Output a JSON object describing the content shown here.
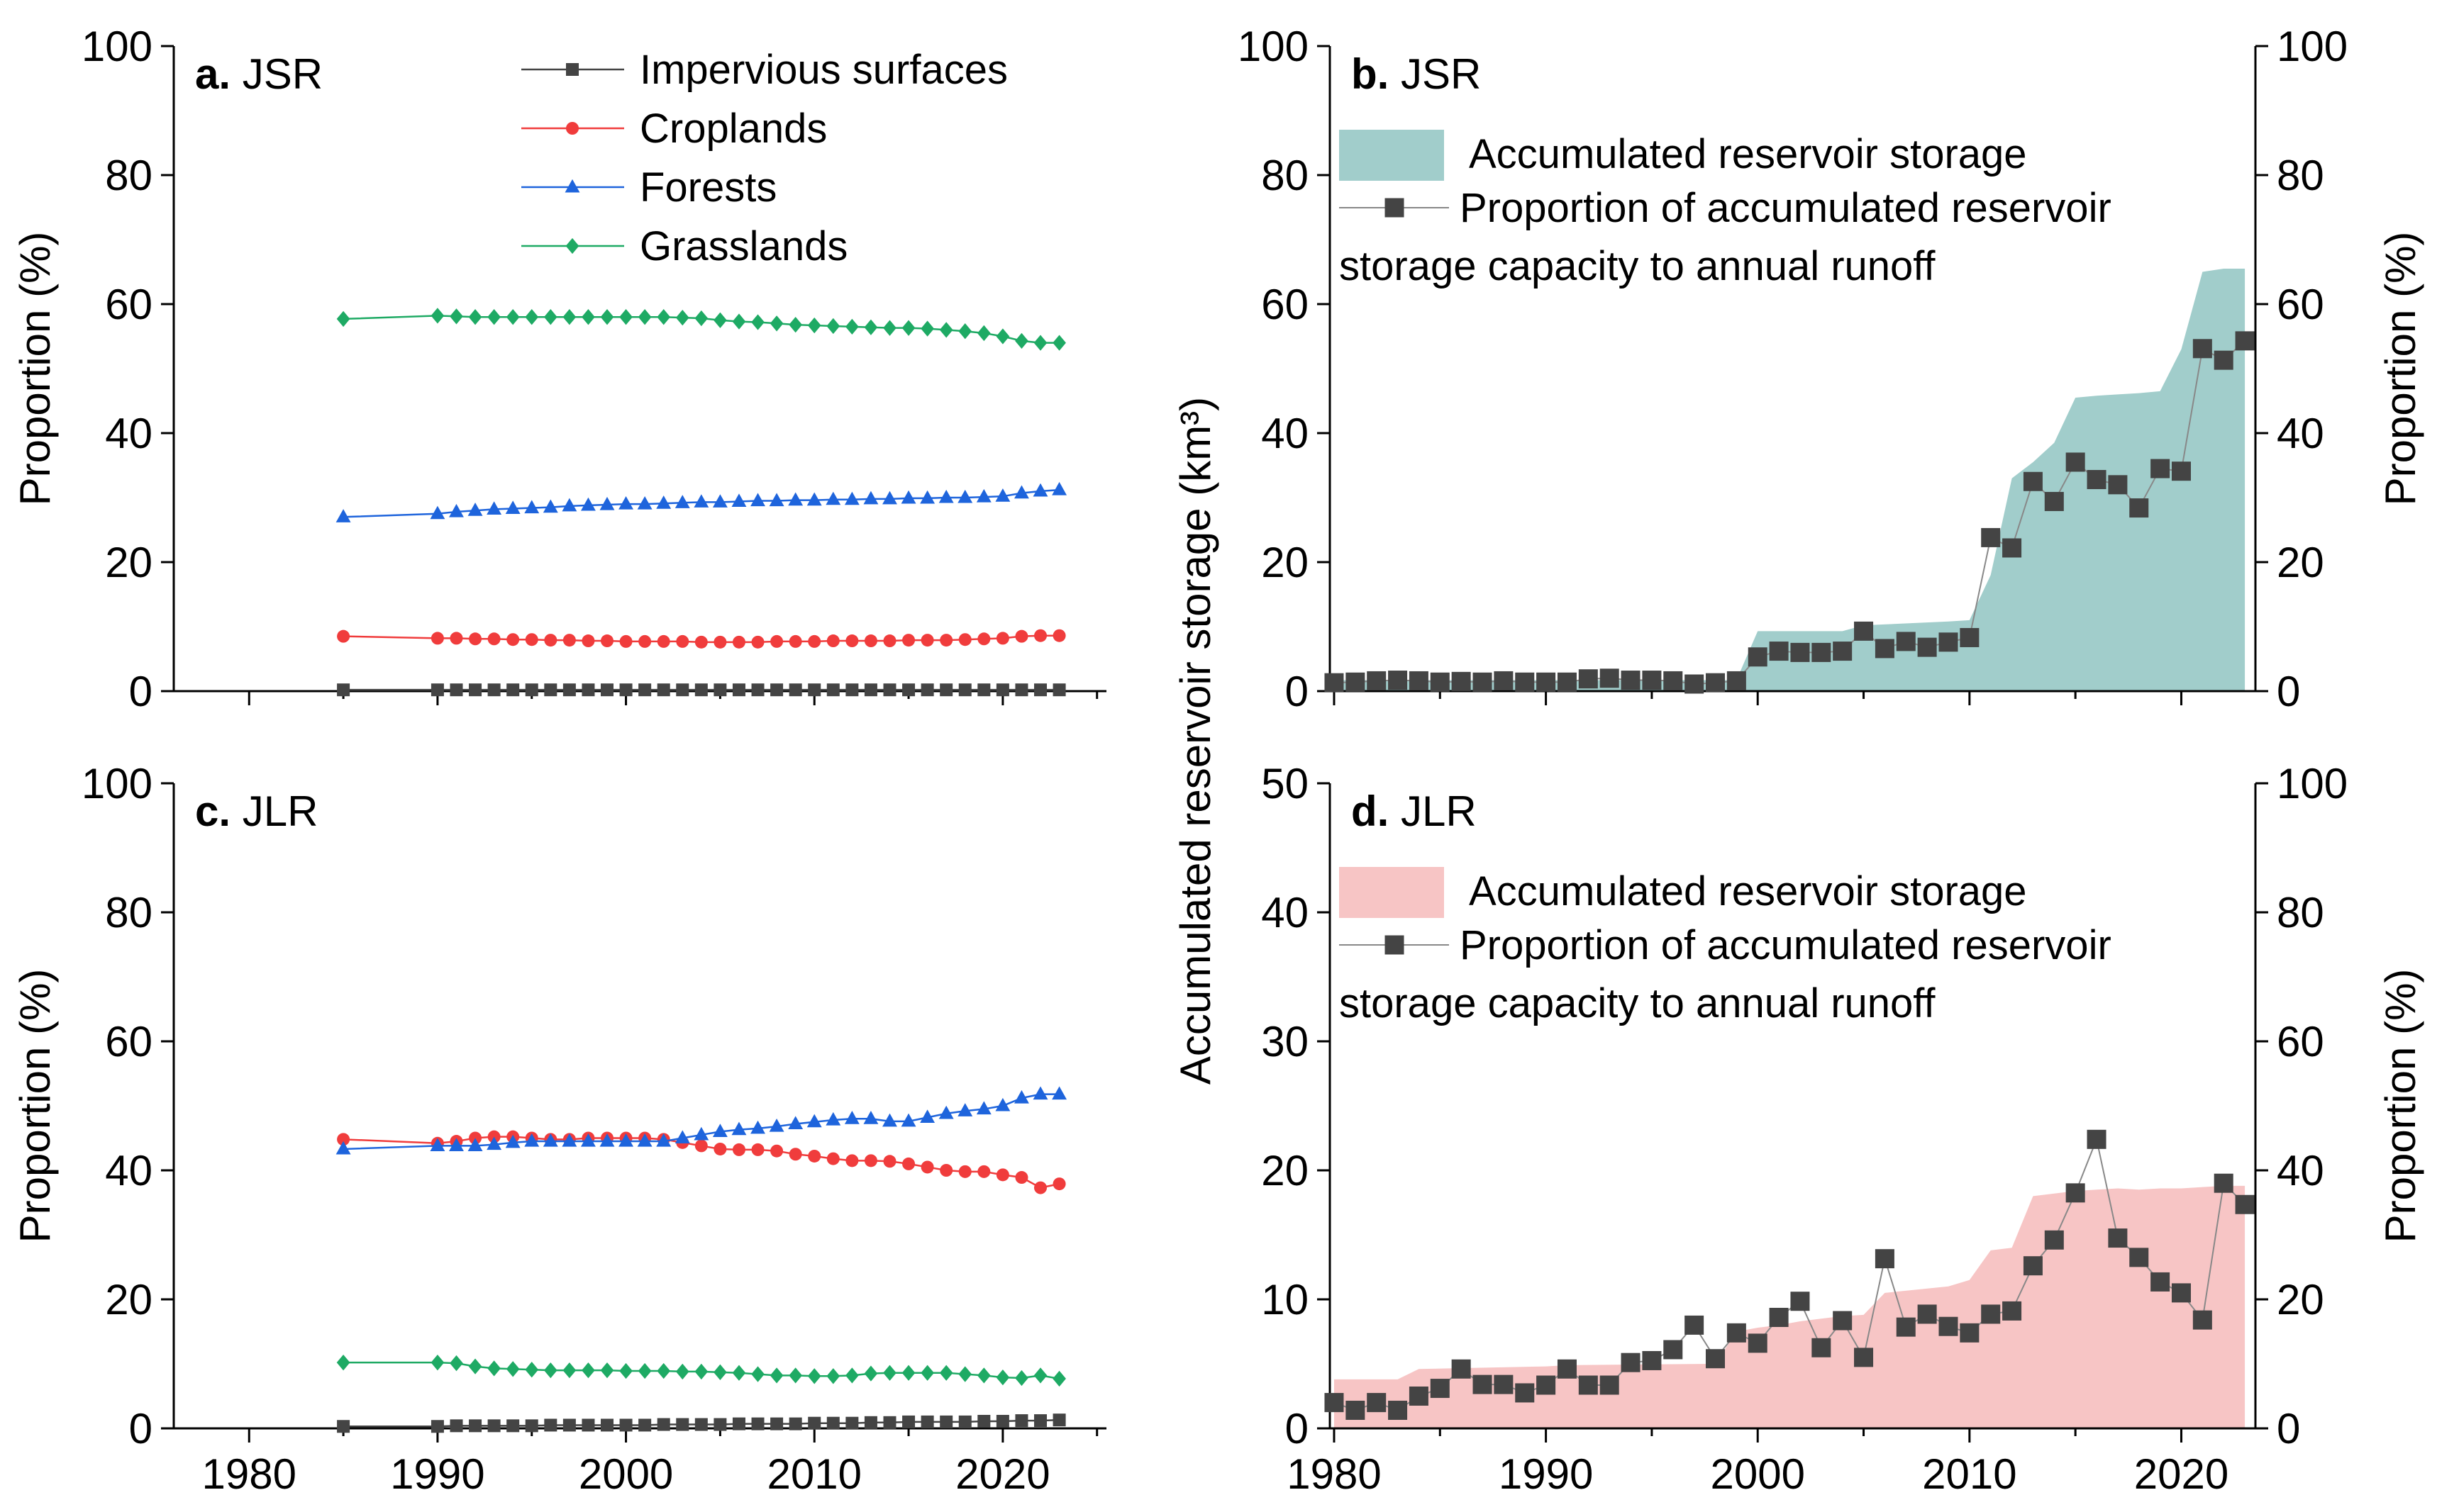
{
  "figure": {
    "shared_ylabel": "Accumulated reservoir storage (km³)"
  },
  "chart_data": [
    {
      "id": "a",
      "type": "line",
      "panel_label": "a.",
      "title": "JSR",
      "xlabel": "",
      "ylabel": "Proportion (%)",
      "xlim": [
        1976,
        2025.5
      ],
      "ylim": [
        0,
        100
      ],
      "xticks": [
        1980,
        1990,
        2000,
        2010,
        2020
      ],
      "xtick_labels_visible": false,
      "yticks": [
        0,
        20,
        40,
        60,
        80,
        100
      ],
      "legend_position": "top-right",
      "x": [
        1985,
        1990,
        1991,
        1992,
        1993,
        1994,
        1995,
        1996,
        1997,
        1998,
        1999,
        2000,
        2001,
        2002,
        2003,
        2004,
        2005,
        2006,
        2007,
        2008,
        2009,
        2010,
        2011,
        2012,
        2013,
        2014,
        2015,
        2016,
        2017,
        2018,
        2019,
        2020,
        2021,
        2022,
        2023
      ],
      "series": [
        {
          "name": "Impervious surfaces",
          "color": "#444444",
          "marker": "square",
          "values": [
            0.2,
            0.2,
            0.2,
            0.2,
            0.2,
            0.2,
            0.2,
            0.2,
            0.2,
            0.2,
            0.2,
            0.2,
            0.2,
            0.2,
            0.2,
            0.2,
            0.2,
            0.2,
            0.2,
            0.2,
            0.2,
            0.2,
            0.2,
            0.2,
            0.2,
            0.2,
            0.2,
            0.2,
            0.2,
            0.2,
            0.2,
            0.2,
            0.2,
            0.2,
            0.2
          ]
        },
        {
          "name": "Croplands",
          "color": "#f03c3c",
          "marker": "circle",
          "values": [
            8.5,
            8.2,
            8.2,
            8.1,
            8.1,
            8.0,
            8.0,
            7.9,
            7.9,
            7.8,
            7.8,
            7.7,
            7.7,
            7.7,
            7.7,
            7.6,
            7.6,
            7.6,
            7.6,
            7.7,
            7.7,
            7.7,
            7.8,
            7.8,
            7.8,
            7.8,
            7.9,
            7.9,
            7.9,
            8.0,
            8.1,
            8.2,
            8.5,
            8.6,
            8.6
          ]
        },
        {
          "name": "Forests",
          "color": "#1e64dc",
          "marker": "triangle",
          "values": [
            27.0,
            27.5,
            27.8,
            28.0,
            28.2,
            28.3,
            28.4,
            28.5,
            28.7,
            28.8,
            28.9,
            29.0,
            29.0,
            29.1,
            29.2,
            29.3,
            29.3,
            29.4,
            29.5,
            29.5,
            29.6,
            29.6,
            29.7,
            29.7,
            29.8,
            29.8,
            29.9,
            29.9,
            30.0,
            30.0,
            30.1,
            30.2,
            30.7,
            31.0,
            31.2
          ]
        },
        {
          "name": "Grasslands",
          "color": "#1eaa64",
          "marker": "diamond",
          "values": [
            57.7,
            58.2,
            58.1,
            58.0,
            58.0,
            58.0,
            58.0,
            58.0,
            58.0,
            58.0,
            58.0,
            58.0,
            58.0,
            58.0,
            57.9,
            57.8,
            57.5,
            57.3,
            57.2,
            57.0,
            56.8,
            56.7,
            56.6,
            56.5,
            56.4,
            56.3,
            56.3,
            56.2,
            56.0,
            55.8,
            55.5,
            55.0,
            54.3,
            54.0,
            54.0
          ]
        }
      ]
    },
    {
      "id": "b",
      "type": "area",
      "panel_label": "b.",
      "title": "JSR",
      "xlabel": "",
      "ylabel_left": "",
      "ylabel_right": "Proportion (%)",
      "xlim": [
        1979.8,
        2023.5
      ],
      "ylim_left": [
        0,
        100
      ],
      "ylim_right": [
        0,
        100
      ],
      "xticks": [
        1980,
        1990,
        2000,
        2010,
        2020
      ],
      "xtick_labels_visible": false,
      "yticks_left": [
        0,
        20,
        40,
        60,
        80,
        100
      ],
      "yticks_right": [
        0,
        20,
        40,
        60,
        80,
        100
      ],
      "legend_position": "top-left",
      "area": {
        "name": "Accumulated reservoir storage",
        "color": "#a1cdcb",
        "x": [
          1980,
          1999,
          2000,
          2004,
          2005,
          2009,
          2010,
          2011,
          2012,
          2013,
          2014,
          2015,
          2016,
          2017,
          2018,
          2019,
          2020,
          2021,
          2022,
          2023
        ],
        "values": [
          1.7,
          1.7,
          9.3,
          9.3,
          10.2,
          10.8,
          11.0,
          18.0,
          33.0,
          35.5,
          38.5,
          45.5,
          45.8,
          46.0,
          46.2,
          46.5,
          53.0,
          65.0,
          65.5,
          65.5
        ]
      },
      "series": [
        {
          "name": "Proportion of accumulated reservoir storage capacity to annual runoff",
          "legend_line2": "storage capacity to annual runoff",
          "color": "#444444",
          "marker": "square",
          "axis": "right",
          "x": [
            1980,
            1981,
            1982,
            1983,
            1984,
            1985,
            1986,
            1987,
            1988,
            1989,
            1990,
            1991,
            1992,
            1993,
            1994,
            1995,
            1996,
            1997,
            1998,
            1999,
            2000,
            2001,
            2002,
            2003,
            2004,
            2005,
            2006,
            2007,
            2008,
            2009,
            2010,
            2011,
            2012,
            2013,
            2014,
            2015,
            2016,
            2017,
            2018,
            2019,
            2020,
            2021,
            2022,
            2023
          ],
          "values": [
            1.3,
            1.4,
            1.6,
            1.7,
            1.6,
            1.4,
            1.5,
            1.4,
            1.6,
            1.4,
            1.4,
            1.4,
            1.9,
            2.0,
            1.7,
            1.7,
            1.6,
            1.1,
            1.3,
            1.6,
            5.3,
            6.2,
            6.0,
            6.0,
            6.2,
            9.3,
            6.6,
            7.7,
            6.8,
            7.6,
            8.3,
            23.8,
            22.2,
            32.5,
            29.4,
            35.5,
            32.8,
            32.0,
            28.4,
            34.5,
            34.1,
            53.1,
            51.3,
            54.3
          ]
        }
      ]
    },
    {
      "id": "c",
      "type": "line",
      "panel_label": "c.",
      "title": "JLR",
      "xlabel": "",
      "ylabel": "Proportion (%)",
      "xlim": [
        1976,
        2025.5
      ],
      "ylim": [
        0,
        100
      ],
      "xticks": [
        1980,
        1990,
        2000,
        2010,
        2020
      ],
      "xtick_labels": [
        "1980",
        "1990",
        "2000",
        "2010",
        "2020"
      ],
      "yticks": [
        0,
        20,
        40,
        60,
        80,
        100
      ],
      "x": [
        1985,
        1990,
        1991,
        1992,
        1993,
        1994,
        1995,
        1996,
        1997,
        1998,
        1999,
        2000,
        2001,
        2002,
        2003,
        2004,
        2005,
        2006,
        2007,
        2008,
        2009,
        2010,
        2011,
        2012,
        2013,
        2014,
        2015,
        2016,
        2017,
        2018,
        2019,
        2020,
        2021,
        2022,
        2023
      ],
      "series": [
        {
          "name": "Impervious surfaces",
          "color": "#444444",
          "marker": "square",
          "values": [
            0.3,
            0.3,
            0.4,
            0.4,
            0.4,
            0.4,
            0.4,
            0.5,
            0.5,
            0.5,
            0.5,
            0.5,
            0.5,
            0.6,
            0.6,
            0.6,
            0.6,
            0.7,
            0.7,
            0.7,
            0.7,
            0.8,
            0.8,
            0.8,
            0.9,
            0.9,
            1.0,
            1.0,
            1.0,
            1.0,
            1.1,
            1.1,
            1.2,
            1.2,
            1.3
          ]
        },
        {
          "name": "Croplands",
          "color": "#f03c3c",
          "marker": "circle",
          "values": [
            44.8,
            44.2,
            44.5,
            45.0,
            45.2,
            45.2,
            45.0,
            44.8,
            44.8,
            45.0,
            45.0,
            45.0,
            45.0,
            44.8,
            44.3,
            43.8,
            43.3,
            43.2,
            43.2,
            43.0,
            42.5,
            42.2,
            41.8,
            41.5,
            41.5,
            41.4,
            41.0,
            40.5,
            40.0,
            39.8,
            39.8,
            39.3,
            38.9,
            37.3,
            37.9
          ]
        },
        {
          "name": "Forests",
          "color": "#1e64dc",
          "marker": "triangle",
          "values": [
            43.3,
            43.8,
            43.8,
            43.8,
            44.0,
            44.3,
            44.5,
            44.5,
            44.5,
            44.5,
            44.5,
            44.5,
            44.5,
            44.5,
            45.0,
            45.5,
            46.0,
            46.3,
            46.5,
            46.8,
            47.2,
            47.5,
            47.8,
            48.0,
            48.0,
            47.6,
            47.6,
            48.2,
            48.8,
            49.2,
            49.5,
            50.0,
            51.2,
            51.8,
            51.8
          ]
        },
        {
          "name": "Grasslands",
          "color": "#1eaa64",
          "marker": "diamond",
          "values": [
            10.2,
            10.2,
            10.1,
            9.6,
            9.3,
            9.2,
            9.1,
            9.0,
            9.0,
            9.0,
            9.0,
            8.9,
            8.9,
            8.9,
            8.8,
            8.8,
            8.7,
            8.6,
            8.4,
            8.2,
            8.2,
            8.1,
            8.1,
            8.2,
            8.5,
            8.6,
            8.6,
            8.6,
            8.6,
            8.4,
            8.2,
            7.9,
            7.8,
            8.2,
            7.7
          ]
        }
      ]
    },
    {
      "id": "d",
      "type": "area",
      "panel_label": "d.",
      "title": "JLR",
      "xlabel": "",
      "ylabel_left": "",
      "ylabel_right": "Proportion (%)",
      "xlim": [
        1979.8,
        2023.5
      ],
      "ylim_left": [
        0,
        50
      ],
      "ylim_right": [
        0,
        100
      ],
      "xticks": [
        1980,
        1990,
        2000,
        2010,
        2020
      ],
      "xtick_labels": [
        "1980",
        "1990",
        "2000",
        "2010",
        "2020"
      ],
      "yticks_left": [
        0,
        10,
        20,
        30,
        40,
        50
      ],
      "yticks_right": [
        0,
        20,
        40,
        60,
        80,
        100
      ],
      "legend_position": "top-left",
      "area": {
        "name": "Accumulated reservoir storage",
        "color": "#f7c5c5",
        "x": [
          1980,
          1983,
          1984,
          1990,
          1991,
          1998,
          1999,
          2000,
          2001,
          2002,
          2003,
          2004,
          2005,
          2006,
          2009,
          2010,
          2011,
          2012,
          2013,
          2014,
          2015,
          2016,
          2017,
          2018,
          2019,
          2020,
          2021,
          2022,
          2023
        ],
        "values": [
          3.8,
          3.8,
          4.6,
          4.8,
          4.9,
          5.0,
          7.5,
          7.8,
          8.0,
          8.3,
          8.5,
          8.7,
          8.8,
          10.5,
          11.0,
          11.5,
          13.8,
          14.0,
          18.0,
          18.2,
          18.4,
          18.5,
          18.6,
          18.5,
          18.6,
          18.6,
          18.7,
          18.8,
          18.8
        ]
      },
      "series": [
        {
          "name": "Proportion of accumulated reservoir storage capacity to annual runoff",
          "legend_line2": "storage capacity to annual runoff",
          "color": "#444444",
          "marker": "square",
          "axis": "right",
          "x": [
            1980,
            1981,
            1982,
            1983,
            1984,
            1985,
            1986,
            1987,
            1988,
            1989,
            1990,
            1991,
            1992,
            1993,
            1994,
            1995,
            1996,
            1997,
            1998,
            1999,
            2000,
            2001,
            2002,
            2003,
            2004,
            2005,
            2006,
            2007,
            2008,
            2009,
            2010,
            2011,
            2012,
            2013,
            2014,
            2015,
            2016,
            2017,
            2018,
            2019,
            2020,
            2021,
            2022,
            2023
          ],
          "values": [
            4.0,
            2.8,
            4.0,
            2.8,
            5.0,
            6.2,
            9.2,
            6.8,
            6.8,
            5.5,
            6.7,
            9.2,
            6.7,
            6.7,
            10.2,
            10.5,
            12.2,
            16.0,
            10.8,
            14.8,
            13.2,
            17.2,
            19.7,
            12.5,
            16.7,
            11.0,
            26.3,
            15.7,
            17.7,
            15.8,
            14.8,
            17.7,
            18.2,
            25.2,
            29.2,
            36.5,
            44.8,
            29.5,
            26.5,
            22.7,
            21.0,
            16.8,
            38.0,
            34.7
          ]
        }
      ]
    }
  ]
}
